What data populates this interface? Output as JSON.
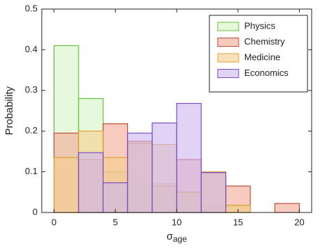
{
  "chart_data": {
    "type": "histogram",
    "ylabel": "Probability",
    "xlabel": {
      "symbol": "σ",
      "subscript": "age"
    },
    "bins": [
      0,
      2,
      4,
      6,
      8,
      10,
      12,
      14,
      16,
      18,
      20
    ],
    "series": [
      {
        "name": "Physics",
        "color": "#d6f5c4",
        "edge": "#66c235",
        "values": [
          0.41,
          0.28,
          0.1,
          0.07,
          0.07,
          0.05,
          0.015,
          0.015,
          0,
          0
        ]
      },
      {
        "name": "Chemistry",
        "color": "#f3a894",
        "edge": "#c24a32",
        "values": [
          0.195,
          0.13,
          0.218,
          0.175,
          0.065,
          0.13,
          0.1,
          0.065,
          0,
          0.022
        ]
      },
      {
        "name": "Medicine",
        "color": "#f5cf8e",
        "edge": "#e0a030",
        "values": [
          0.135,
          0.2,
          0.135,
          0.17,
          0.167,
          0.05,
          0.1,
          0.018,
          0,
          0
        ]
      },
      {
        "name": "Economics",
        "color": "#cdb6f0",
        "edge": "#7a4cc4",
        "values": [
          0,
          0.147,
          0.073,
          0.195,
          0.22,
          0.268,
          0.098,
          0,
          0,
          0
        ]
      }
    ],
    "xlim": [
      -1,
      21
    ],
    "xticks": [
      0,
      5,
      10,
      15,
      20
    ],
    "ylim": [
      0,
      0.5
    ],
    "yticks": [
      0,
      0.1,
      0.2,
      0.3,
      0.4,
      0.5
    ],
    "grid": false,
    "legend": "upper right"
  }
}
